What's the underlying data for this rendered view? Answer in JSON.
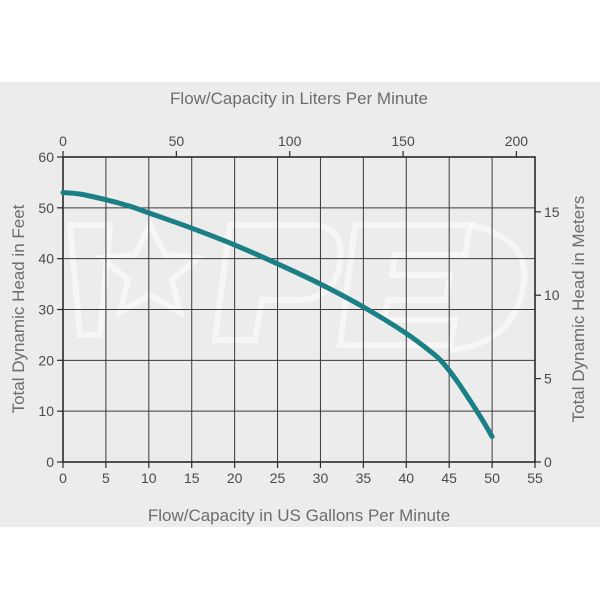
{
  "chart_data": {
    "type": "line",
    "x_title": "Flow/Capacity in US Gallons Per Minute",
    "x2_title": "Flow/Capacity in Liters Per Minute",
    "y_title": "Total Dynamic Head in Feet",
    "y2_title": "Total Dynamic Head in Meters",
    "xlim": [
      0,
      55
    ],
    "ylim": [
      0,
      60
    ],
    "x2lim": [
      0,
      208.2
    ],
    "y2lim": [
      0,
      18.29
    ],
    "x_ticks": [
      "0",
      "5",
      "10",
      "15",
      "20",
      "25",
      "30",
      "35",
      "40",
      "45",
      "50",
      "55"
    ],
    "y_ticks": [
      "0",
      "10",
      "20",
      "30",
      "40",
      "50",
      "60"
    ],
    "x2_ticks": [
      "0",
      "50",
      "100",
      "150",
      "200"
    ],
    "y2_ticks": [
      "0",
      "5",
      "10",
      "15"
    ],
    "grid": true,
    "series": [
      {
        "color": "#1b7f86",
        "x": [
          0,
          2,
          5,
          8,
          10,
          15,
          20,
          25,
          30,
          35,
          40,
          43,
          44,
          45,
          46,
          47,
          48,
          49,
          50
        ],
        "y": [
          53,
          52.7,
          51.6,
          50.2,
          49,
          46,
          42.7,
          39,
          35,
          30.5,
          25.3,
          21.5,
          20,
          18,
          15.7,
          13.2,
          10.6,
          7.9,
          5
        ]
      }
    ]
  },
  "watermark": "PEP"
}
